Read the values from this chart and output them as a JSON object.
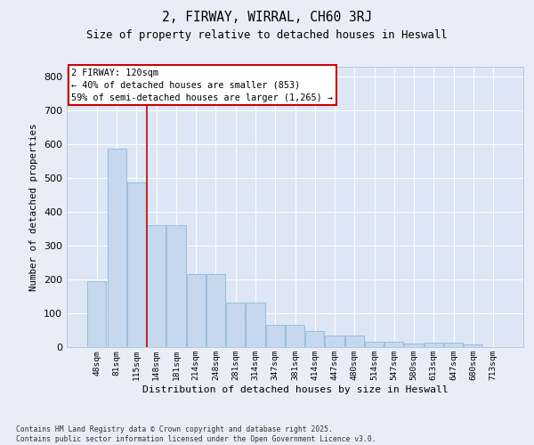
{
  "title_line1": "2, FIRWAY, WIRRAL, CH60 3RJ",
  "title_line2": "Size of property relative to detached houses in Heswall",
  "xlabel": "Distribution of detached houses by size in Heswall",
  "ylabel": "Number of detached properties",
  "categories": [
    "48sqm",
    "81sqm",
    "115sqm",
    "148sqm",
    "181sqm",
    "214sqm",
    "248sqm",
    "281sqm",
    "314sqm",
    "347sqm",
    "381sqm",
    "414sqm",
    "447sqm",
    "480sqm",
    "514sqm",
    "547sqm",
    "580sqm",
    "613sqm",
    "647sqm",
    "680sqm",
    "713sqm"
  ],
  "values": [
    196,
    588,
    488,
    360,
    360,
    217,
    217,
    133,
    133,
    67,
    67,
    48,
    35,
    35,
    17,
    17,
    10,
    12,
    12,
    7,
    0
  ],
  "bar_color": "#c5d8ee",
  "bar_edge_color": "#92b8d8",
  "vline_color": "#cc0000",
  "vline_index": 2.5,
  "annotation_text": "2 FIRWAY: 120sqm\n← 40% of detached houses are smaller (853)\n59% of semi-detached houses are larger (1,265) →",
  "annotation_box_facecolor": "#ffffff",
  "annotation_border_color": "#cc0000",
  "ylim": [
    0,
    830
  ],
  "yticks": [
    0,
    100,
    200,
    300,
    400,
    500,
    600,
    700,
    800
  ],
  "background_color": "#e8eef8",
  "plot_background_color": "#dce6f4",
  "grid_color": "#ffffff",
  "footer_line1": "Contains HM Land Registry data © Crown copyright and database right 2025.",
  "footer_line2": "Contains public sector information licensed under the Open Government Licence v3.0."
}
